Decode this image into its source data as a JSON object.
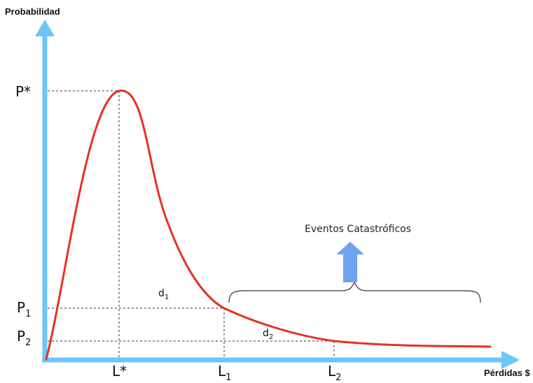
{
  "axes": {
    "y_title": "Probabilidad",
    "x_title": "Pérdidas $"
  },
  "y_ticks": [
    {
      "main": "P*",
      "sub": ""
    },
    {
      "main": "P",
      "sub": "1"
    },
    {
      "main": "P",
      "sub": "2"
    }
  ],
  "x_ticks": [
    {
      "main": "L*",
      "sub": ""
    },
    {
      "main": "L",
      "sub": "1"
    },
    {
      "main": "L",
      "sub": "2"
    }
  ],
  "distances": [
    {
      "main": "d",
      "sub": "1"
    },
    {
      "main": "d",
      "sub": "2"
    }
  ],
  "annotation": {
    "text": "Eventos Catastróficos"
  },
  "colors": {
    "axis": "#6cc6f6",
    "curve": "#e8301e",
    "arrow": "#6fa3f0",
    "guide": "#333333",
    "brace": "#333333"
  }
}
